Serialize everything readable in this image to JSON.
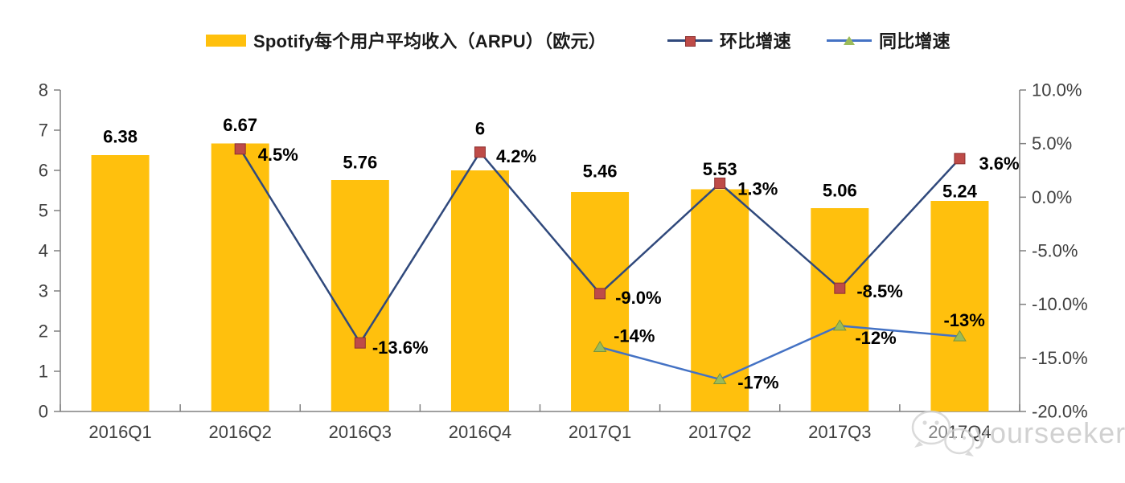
{
  "page": {
    "background": "#FFFFFF"
  },
  "legend": {
    "items": [
      {
        "label": "Spotify每个用户平均收入（ARPU）（欧元）",
        "swatch": "bar"
      },
      {
        "label": "环比增速",
        "swatch": "line-square"
      },
      {
        "label": "同比增速",
        "swatch": "line-triangle"
      }
    ]
  },
  "watermark": {
    "icon": "wechat-icon",
    "text": "yourseeker"
  },
  "chart_data": {
    "type": "combo-bar-line",
    "title": "Spotify每个用户平均收入（ARPU）（欧元）",
    "grid": false,
    "legend_position": "top",
    "categories": [
      "2016Q1",
      "2016Q2",
      "2016Q3",
      "2016Q4",
      "2017Q1",
      "2017Q2",
      "2017Q3",
      "2017Q4"
    ],
    "series": [
      {
        "name": "Spotify每个用户平均收入（ARPU）（欧元）",
        "type": "bar",
        "axis": "left",
        "color": "#FFC00D",
        "values": [
          6.38,
          6.67,
          5.76,
          6,
          5.46,
          5.53,
          5.06,
          5.24
        ],
        "labels": [
          "6.38",
          "6.67",
          "5.76",
          "6",
          "5.46",
          "5.53",
          "5.06",
          "5.24"
        ],
        "label_dy": [
          -23,
          -23,
          -22,
          -52,
          -26,
          -25,
          -22,
          -12
        ]
      },
      {
        "name": "环比增速",
        "type": "line",
        "axis": "right",
        "color": "#30497C",
        "marker": "square",
        "marker_color": "#BE4B48",
        "marker_border": "#8C3130",
        "values": [
          null,
          4.5,
          -13.6,
          4.2,
          -9.0,
          1.3,
          -8.5,
          3.6
        ],
        "labels": [
          null,
          "4.5%",
          "-13.6%",
          "4.2%",
          "-9.0%",
          "1.3%",
          "-8.5%",
          "3.6%"
        ],
        "label_offset": [
          null,
          [
            22,
            7
          ],
          [
            15,
            6
          ],
          [
            20,
            5
          ],
          [
            19,
            5
          ],
          [
            22,
            7
          ],
          [
            21,
            4
          ],
          [
            24,
            6
          ]
        ]
      },
      {
        "name": "同比增速",
        "type": "line",
        "axis": "right",
        "color": "#4472C4",
        "marker": "triangle",
        "marker_color": "#9BBB59",
        "marker_border": "#77933C",
        "values": [
          null,
          null,
          null,
          null,
          -14,
          -17,
          -12,
          -13
        ],
        "labels": [
          null,
          null,
          null,
          null,
          "-14%",
          "-17%",
          "-12%",
          "-13%"
        ],
        "label_offset": [
          null,
          null,
          null,
          null,
          [
            17,
            -14
          ],
          [
            22,
            4
          ],
          [
            19,
            15
          ],
          [
            -20,
            -20
          ]
        ]
      }
    ],
    "left_axis": {
      "min": 0,
      "max": 8,
      "step": 1,
      "labels": [
        "0",
        "1",
        "2",
        "3",
        "4",
        "5",
        "6",
        "7",
        "8"
      ]
    },
    "right_axis": {
      "min": -20,
      "max": 10,
      "step": 5,
      "labels": [
        "-20.0%",
        "-15.0%",
        "-10.0%",
        "-5.0%",
        "0.0%",
        "5.0%",
        "10.0%"
      ]
    }
  }
}
